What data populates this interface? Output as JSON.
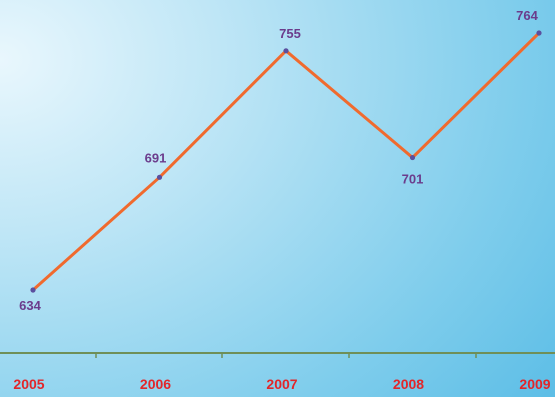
{
  "chart_data": {
    "type": "line",
    "categories": [
      "2005",
      "2006",
      "2007",
      "2008",
      "2009"
    ],
    "values": [
      634,
      691,
      755,
      701,
      764
    ],
    "data_labels": [
      "634",
      "691",
      "755",
      "701",
      "764"
    ],
    "grid": false,
    "legend": "none"
  },
  "colors": {
    "line": "#f06a2e",
    "marker": "#5b4f9e",
    "data_label": "#6b3c8c",
    "tick_label": "#e2262a",
    "axis": "#6f8f58"
  }
}
